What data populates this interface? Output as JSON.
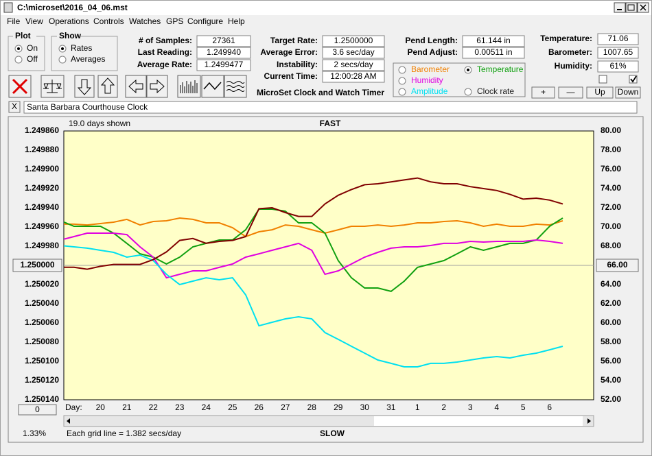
{
  "window": {
    "title": "C:\\microset\\2016_04_06.mst"
  },
  "menu": [
    "File",
    "View",
    "Operations",
    "Controls",
    "Watches",
    "GPS",
    "Configure",
    "Help"
  ],
  "plot_group": {
    "title": "Plot",
    "options": [
      "On",
      "Off"
    ],
    "selected": 0
  },
  "show_group": {
    "title": "Show",
    "options": [
      "Rates",
      "Averages"
    ],
    "selected": 0
  },
  "stats": [
    {
      "label": "# of Samples:",
      "value": "27361"
    },
    {
      "label": "Last Reading:",
      "value": "1.249940"
    },
    {
      "label": "Average Rate:",
      "value": "1.2499477"
    }
  ],
  "timing": [
    {
      "label": "Target Rate:",
      "value": "1.2500000"
    },
    {
      "label": "Average Error:",
      "value": "3.6 sec/day"
    },
    {
      "label": "Instability:",
      "value": "2 secs/day"
    },
    {
      "label": "Current Time:",
      "value": "12:00:28 AM"
    }
  ],
  "pendulum": [
    {
      "label": "Pend Length:",
      "value": "61.144 in"
    },
    {
      "label": "Pend Adjust:",
      "value": "0.00511 in"
    }
  ],
  "environment": [
    {
      "label": "Temperature:",
      "value": "71.06"
    },
    {
      "label": "Barometer:",
      "value": "1007.65"
    },
    {
      "label": "Humidity:",
      "value": "61%"
    }
  ],
  "app_title": "MicroSet Clock and Watch Timer",
  "adjust_buttons": [
    "+",
    "—",
    "Up",
    "Down"
  ],
  "watch": {
    "close": "X",
    "name": "Santa Barbara Courthouse Clock"
  },
  "chart_data": {
    "type": "line",
    "top_label": "FAST",
    "bottom_label": "SLOW",
    "span_label": "19.0 days shown",
    "grid_note": "Each grid line = 1.382 secs/day",
    "zoom": "1.33%",
    "scroll_value": "0",
    "x_label": "Day:",
    "categories": [
      null,
      null,
      null,
      "20",
      null,
      "21",
      null,
      "22",
      null,
      "23",
      null,
      "24",
      null,
      "25",
      null,
      "26",
      null,
      "27",
      null,
      "28",
      null,
      "29",
      null,
      "30",
      null,
      "31",
      null,
      "1",
      null,
      "2",
      null,
      "3",
      null,
      "4",
      null,
      "5",
      null,
      "6",
      null
    ],
    "ylim": [
      1.25014,
      1.24986
    ],
    "yticks": [
      {
        "value": 1.24986,
        "label": "1.249860"
      },
      {
        "value": 1.24988,
        "label": "1.249880"
      },
      {
        "value": 1.2499,
        "label": "1.249900"
      },
      {
        "value": 1.24992,
        "label": "1.249920"
      },
      {
        "value": 1.24994,
        "label": "1.249940"
      },
      {
        "value": 1.24996,
        "label": "1.249960"
      },
      {
        "value": 1.24998,
        "label": "1.249980"
      },
      {
        "value": 1.25002,
        "label": "1.250020"
      },
      {
        "value": 1.25004,
        "label": "1.250040"
      },
      {
        "value": 1.25006,
        "label": "1.250060"
      },
      {
        "value": 1.25008,
        "label": "1.250080"
      },
      {
        "value": 1.2501,
        "label": "1.250100"
      },
      {
        "value": 1.25012,
        "label": "1.250120"
      },
      {
        "value": 1.25014,
        "label": "1.250140"
      }
    ],
    "y2lim": [
      52,
      80
    ],
    "y2ticks": [
      {
        "value": 80,
        "label": "80.00"
      },
      {
        "value": 78,
        "label": "78.00"
      },
      {
        "value": 76,
        "label": "76.00"
      },
      {
        "value": 74,
        "label": "74.00"
      },
      {
        "value": 72,
        "label": "72.00"
      },
      {
        "value": 70,
        "label": "70.00"
      },
      {
        "value": 68,
        "label": "68.00"
      },
      {
        "value": 64,
        "label": "64.00"
      },
      {
        "value": 62,
        "label": "62.00"
      },
      {
        "value": 60,
        "label": "60.00"
      },
      {
        "value": 58,
        "label": "58.00"
      },
      {
        "value": 56,
        "label": "56.00"
      },
      {
        "value": 54,
        "label": "54.00"
      },
      {
        "value": 52,
        "label": "52.00"
      }
    ],
    "y_ref": {
      "value": 1.25,
      "label": "1.250000"
    },
    "y2_ref": {
      "value": 66,
      "label": "66.00"
    },
    "grid": false,
    "background": "#ffffc8",
    "legend_selected": 1,
    "series": [
      {
        "name": "Barometer",
        "color": "#f08000",
        "axis": "y2",
        "values": [
          70.29,
          70.29,
          70.21,
          70.36,
          70.5,
          70.79,
          70.21,
          70.57,
          70.64,
          70.93,
          70.79,
          70.43,
          70.43,
          69.93,
          69.0,
          69.5,
          69.71,
          70.21,
          70.07,
          69.71,
          69.36,
          69.71,
          70.07,
          70.07,
          70.21,
          70.07,
          70.21,
          70.43,
          70.43,
          70.57,
          70.64,
          70.43,
          70.07,
          70.29,
          70.07,
          70.07,
          70.29,
          70.21,
          70.64
        ]
      },
      {
        "name": "Temperature",
        "color": "#10a010",
        "axis": "y2",
        "values": [
          70.64,
          70.07,
          70.07,
          70.07,
          69.36,
          68.29,
          67.21,
          66.86,
          66.14,
          66.86,
          67.93,
          68.29,
          68.64,
          68.64,
          69.71,
          71.86,
          71.86,
          71.64,
          70.43,
          70.43,
          69.36,
          66.5,
          64.71,
          63.64,
          63.64,
          63.29,
          64.36,
          65.79,
          66.14,
          66.5,
          67.21,
          67.93,
          67.57,
          67.93,
          68.29,
          68.29,
          68.64,
          70.07,
          70.93
        ]
      },
      {
        "name": "Humidity",
        "color": "#e000e0",
        "axis": "y2",
        "values": [
          68.64,
          69.0,
          69.36,
          69.36,
          69.36,
          69.21,
          67.93,
          66.86,
          64.71,
          65.07,
          65.43,
          65.43,
          65.79,
          66.14,
          66.86,
          67.21,
          67.57,
          67.93,
          68.29,
          67.57,
          65.07,
          65.43,
          66.14,
          66.86,
          67.36,
          67.79,
          67.93,
          67.93,
          68.07,
          68.29,
          68.29,
          68.5,
          68.43,
          68.5,
          68.5,
          68.5,
          68.64,
          68.5,
          68.29
        ]
      },
      {
        "name": "Amplitude",
        "color": "#00e0f0",
        "axis": "y2",
        "values": [
          68.07,
          67.93,
          67.79,
          67.57,
          67.36,
          66.86,
          67.07,
          66.5,
          65.07,
          64.0,
          64.36,
          64.71,
          64.5,
          64.71,
          62.93,
          59.71,
          60.07,
          60.43,
          60.64,
          60.43,
          59.0,
          58.29,
          57.57,
          56.86,
          56.14,
          55.79,
          55.43,
          55.43,
          55.79,
          55.79,
          55.93,
          56.14,
          56.36,
          56.5,
          56.36,
          56.64,
          56.86,
          57.21,
          57.57
        ]
      },
      {
        "name": "Clock rate",
        "color": "#800000",
        "values": [
          1.250002,
          1.250002,
          1.250004,
          1.250001,
          1.249999,
          1.249999,
          1.249999,
          1.249994,
          1.249986,
          1.249974,
          1.249972,
          1.249977,
          1.249975,
          1.249974,
          1.24997,
          1.249941,
          1.24994,
          1.249945,
          1.249949,
          1.249949,
          1.249936,
          1.249927,
          1.249921,
          1.249916,
          1.249915,
          1.249913,
          1.249911,
          1.249909,
          1.249913,
          1.249915,
          1.249915,
          1.249918,
          1.24992,
          1.249922,
          1.249926,
          1.249931,
          1.24993,
          1.249932,
          1.249936
        ]
      }
    ]
  }
}
